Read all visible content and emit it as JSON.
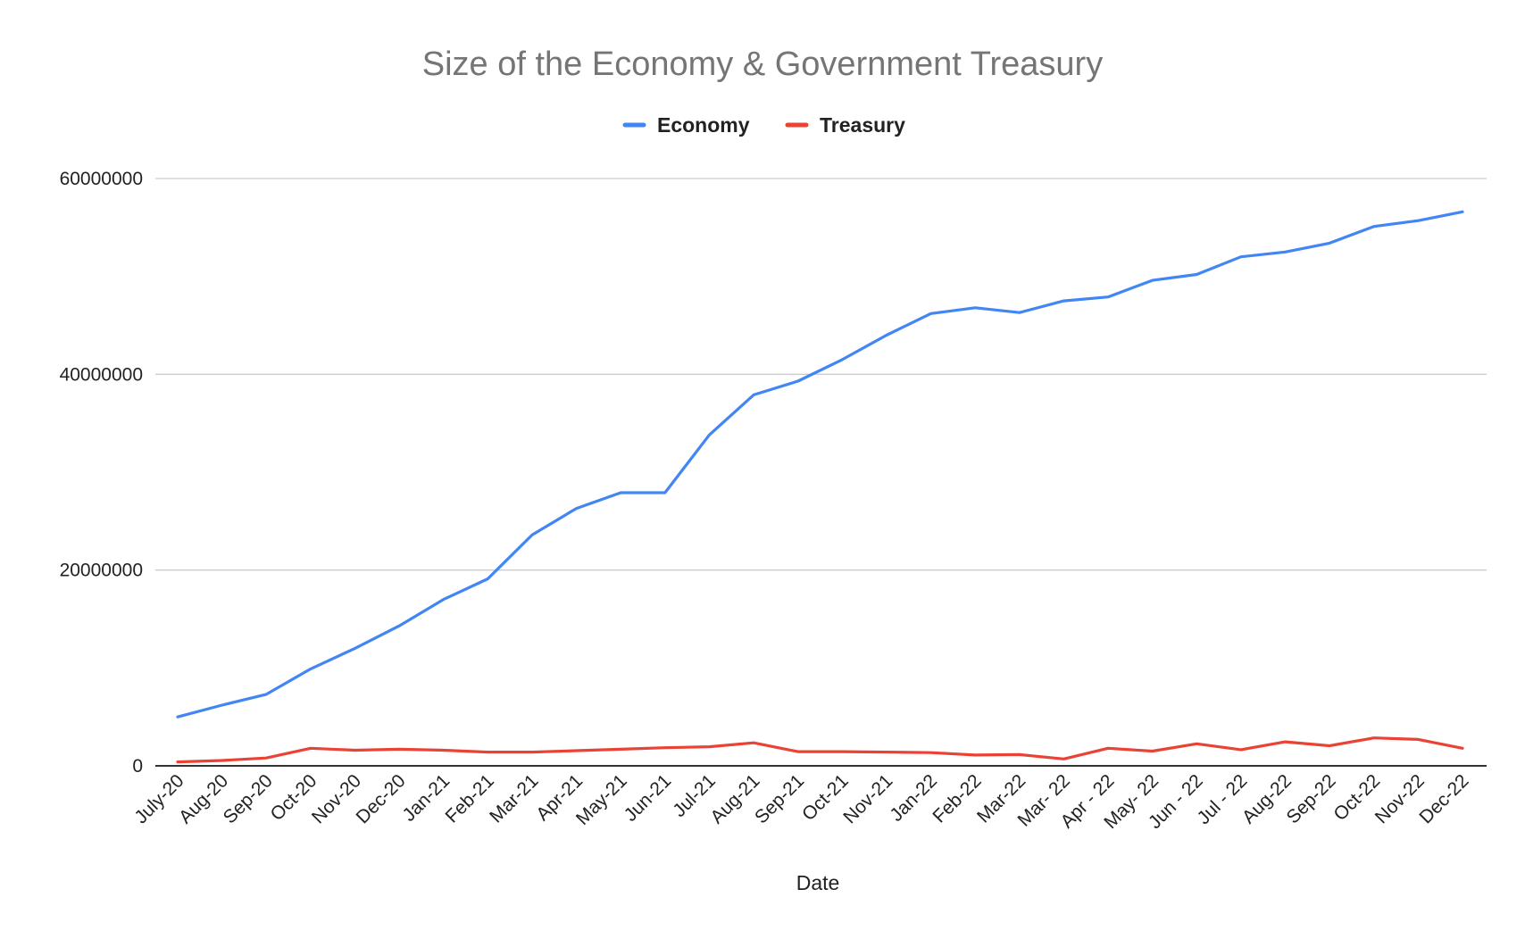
{
  "chart_data": {
    "type": "line",
    "title": "Size of the Economy & Government Treasury",
    "xlabel": "Date",
    "ylabel": "",
    "ylim": [
      0,
      60000000
    ],
    "yticks": [
      0,
      20000000,
      40000000,
      60000000
    ],
    "grid": true,
    "legend_position": "top",
    "categories": [
      "July-20",
      "Aug-20",
      "Sep-20",
      "Oct-20",
      "Nov-20",
      "Dec-20",
      "Jan-21",
      "Feb-21",
      "Mar-21",
      "Apr-21",
      "May-21",
      "Jun-21",
      "Jul-21",
      "Aug-21",
      "Sep-21",
      "Oct-21",
      "Nov-21",
      "Jan-22",
      "Feb-22",
      "Mar-22",
      "Mar- 22",
      "Apr - 22",
      "May- 22",
      "Jun - 22",
      "Jul - 22",
      "Aug-22",
      "Sep-22",
      "Oct-22",
      "Nov-22",
      "Dec-22"
    ],
    "series": [
      {
        "name": "Economy",
        "color": "#4285f4",
        "values": [
          5000000,
          6200000,
          7300000,
          9900000,
          12000000,
          14300000,
          17000000,
          19100000,
          23600000,
          26300000,
          27900000,
          27900000,
          33800000,
          37900000,
          39300000,
          41500000,
          44000000,
          46200000,
          46800000,
          46300000,
          47500000,
          47900000,
          49600000,
          50200000,
          52000000,
          52500000,
          53400000,
          55100000,
          55700000,
          56600000
        ]
      },
      {
        "name": "Treasury",
        "color": "#ea4335",
        "values": [
          400000,
          550000,
          800000,
          1800000,
          1600000,
          1700000,
          1600000,
          1400000,
          1400000,
          1550000,
          1700000,
          1850000,
          1950000,
          2350000,
          1450000,
          1450000,
          1400000,
          1350000,
          1100000,
          1150000,
          700000,
          1800000,
          1500000,
          2250000,
          1650000,
          2450000,
          2050000,
          2850000,
          2700000,
          1800000
        ]
      }
    ]
  }
}
